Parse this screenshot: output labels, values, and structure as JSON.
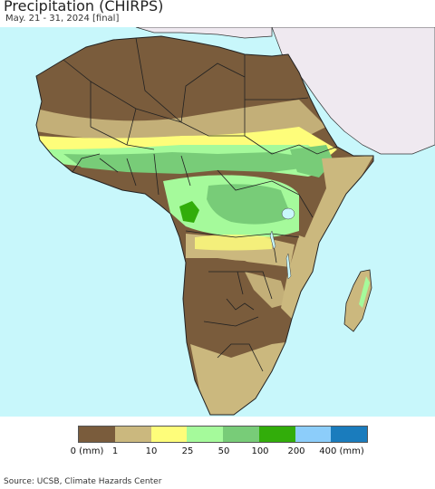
{
  "header": {
    "title": "Precipitation (CHIRPS)",
    "subtitle": "May. 21 - 31, 2024 [final]"
  },
  "map": {
    "ocean_color": "#c8f7fb",
    "outside_land_color": "#efe9f0"
  },
  "legend": {
    "colors": [
      "#7a5c3c",
      "#cbb87e",
      "#fefd7a",
      "#a5fa9b",
      "#78cc78",
      "#32ad0a",
      "#8ccdfa",
      "#1a7cbd"
    ],
    "labels": [
      "0 (mm)",
      "1",
      "10",
      "25",
      "50",
      "100",
      "200",
      "400 (mm)"
    ]
  },
  "footer": {
    "source": "Source: UCSB, Climate Hazards Center"
  }
}
